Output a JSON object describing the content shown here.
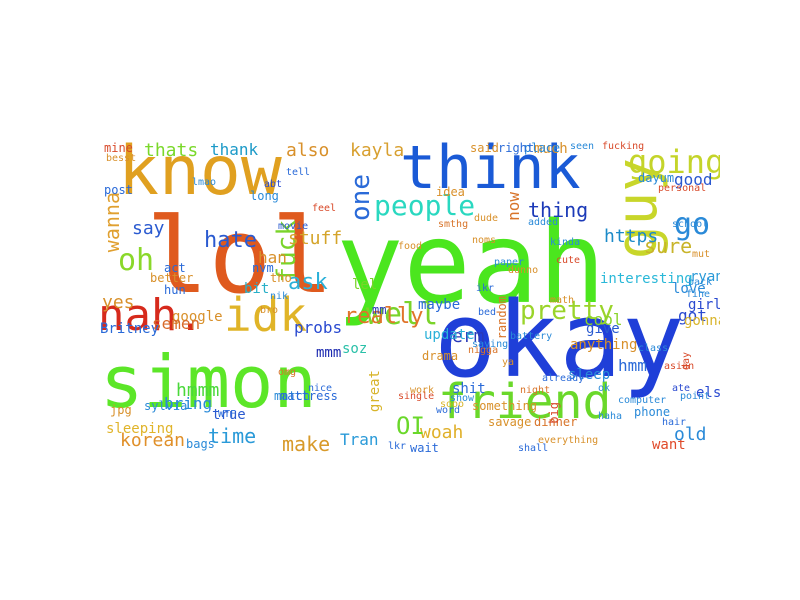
{
  "words": [
    {
      "t": "yeah",
      "c": "#4be61e"
    },
    {
      "t": "okay",
      "c": "#1f3fd8"
    },
    {
      "t": "simon",
      "c": "#5ce628"
    },
    {
      "t": "lol",
      "c": "#df5a1e"
    },
    {
      "t": "know",
      "c": "#e0a020"
    },
    {
      "t": "think",
      "c": "#1a5ad6"
    },
    {
      "t": "guy",
      "c": "#c8d62a"
    },
    {
      "t": "friend",
      "c": "#6ad82a"
    },
    {
      "t": "nah.",
      "c": "#d62a1c"
    },
    {
      "t": "idk",
      "c": "#e0b428"
    },
    {
      "t": "going",
      "c": "#c4d42a"
    },
    {
      "t": "people",
      "c": "#2ad8c0"
    },
    {
      "t": "well",
      "c": "#7ad42a"
    },
    {
      "t": "oh",
      "c": "#8ad82a"
    },
    {
      "t": "fuck",
      "c": "#7ad42a"
    },
    {
      "t": "go",
      "c": "#2a8ad8"
    },
    {
      "t": "one",
      "c": "#2a6ad8"
    },
    {
      "t": "hate",
      "c": "#2a5ad0"
    },
    {
      "t": "ask",
      "c": "#2ab0d8"
    },
    {
      "t": "pretty",
      "c": "#9ad42a"
    },
    {
      "t": "stuff",
      "c": "#d4a42a"
    },
    {
      "t": "thats",
      "c": "#7ad82a"
    },
    {
      "t": "also",
      "c": "#d8902a"
    },
    {
      "t": "kayla",
      "c": "#d8a030"
    },
    {
      "t": "thank",
      "c": "#1c9ac8"
    },
    {
      "t": "good",
      "c": "#2a58d0"
    },
    {
      "t": "thing",
      "c": "#1c3ab8"
    },
    {
      "t": "sure",
      "c": "#c8b42a"
    },
    {
      "t": "wanna",
      "c": "#e0a030"
    },
    {
      "t": "say",
      "c": "#2a5ad0"
    },
    {
      "t": "yes",
      "c": "#d8902a"
    },
    {
      "t": "time",
      "c": "#2a9ad8"
    },
    {
      "t": "make",
      "c": "#d89a2a"
    },
    {
      "t": "korean",
      "c": "#e0902a"
    },
    {
      "t": "really",
      "c": "#e0742a"
    },
    {
      "t": "erm",
      "c": "#2a3ab8"
    },
    {
      "t": "lel",
      "c": "#7ad42a"
    },
    {
      "t": "woah",
      "c": "#e0b02a"
    },
    {
      "t": "OI",
      "c": "#6ad82a"
    },
    {
      "t": "Tran",
      "c": "#2a9ad8"
    },
    {
      "t": "want",
      "c": "#e04a2a"
    },
    {
      "t": "old",
      "c": "#2a8ad8"
    },
    {
      "t": "got",
      "c": "#2a4ad0"
    },
    {
      "t": "https",
      "c": "#1c8ac8"
    },
    {
      "t": "now",
      "c": "#d8742a"
    },
    {
      "t": "cool",
      "c": "#8ad42a"
    },
    {
      "t": "han",
      "c": "#d8902a"
    },
    {
      "t": "bit",
      "c": "#2ab0c8"
    },
    {
      "t": "probs",
      "c": "#2a4ad0"
    },
    {
      "t": "soz",
      "c": "#2ac0a8"
    },
    {
      "t": "update",
      "c": "#2ab0d8"
    },
    {
      "t": "hmmm",
      "c": "#4ad83a"
    },
    {
      "t": "bring",
      "c": "#2a8ad8"
    },
    {
      "t": "true",
      "c": "#2a5ad0"
    },
    {
      "t": "mmm",
      "c": "#1c2ab0"
    },
    {
      "t": "google",
      "c": "#d8902a"
    },
    {
      "t": "semen",
      "c": "#d86a2a"
    },
    {
      "t": "Britney",
      "c": "#2a6ad8"
    },
    {
      "t": "sleeping",
      "c": "#e0b42a"
    },
    {
      "t": "interesting",
      "c": "#2ab8d8"
    },
    {
      "t": "gonna",
      "c": "#d8b42a"
    },
    {
      "t": "ryan",
      "c": "#2a9ad8"
    },
    {
      "t": "anything",
      "c": "#d8902a"
    },
    {
      "t": "girl",
      "c": "#2a4ad0"
    },
    {
      "t": "give",
      "c": "#2a5ad0"
    },
    {
      "t": "sleep",
      "c": "#2a8ad8"
    },
    {
      "t": "great",
      "c": "#d8b42a"
    },
    {
      "t": "shit",
      "c": "#2a6ad8"
    },
    {
      "t": "else",
      "c": "#2a4ad0"
    },
    {
      "t": "maybe",
      "c": "#2a6ad8"
    },
    {
      "t": "act",
      "c": "#2a6ad8"
    },
    {
      "t": "better",
      "c": "#d8902a"
    },
    {
      "t": "hmm",
      "c": "#2a6ad8"
    },
    {
      "t": "dinner",
      "c": "#d8742a"
    },
    {
      "t": "much",
      "c": "#d8902a"
    },
    {
      "t": "love",
      "c": "#2a8ad8"
    },
    {
      "t": "something",
      "c": "#d8902a"
    },
    {
      "t": "idea",
      "c": "#d8902a"
    },
    {
      "t": "post",
      "c": "#2a6ad8"
    },
    {
      "t": "match",
      "c": "#2a8ad8"
    },
    {
      "t": "mattress",
      "c": "#2a6ad8"
    },
    {
      "t": "single",
      "c": "#d84a2a"
    },
    {
      "t": "phone",
      "c": "#2a8ad8"
    },
    {
      "t": "savage",
      "c": "#d8902a"
    },
    {
      "t": "everything",
      "c": "#d8902a"
    },
    {
      "t": "asian",
      "c": "#d84a2a"
    },
    {
      "t": "point",
      "c": "#2a8ad8"
    },
    {
      "t": "movie",
      "c": "#2a5ad0"
    },
    {
      "t": "said",
      "c": "#d8902a"
    },
    {
      "t": "place",
      "c": "#2a8ad8"
    },
    {
      "t": "right",
      "c": "#2a6ad8"
    },
    {
      "t": "mine",
      "c": "#d84a2a"
    },
    {
      "t": "long",
      "c": "#2a8ad8"
    },
    {
      "t": "math",
      "c": "#d8902a"
    },
    {
      "t": "random",
      "c": "#d8742a"
    },
    {
      "t": "drama",
      "c": "#d8902a"
    },
    {
      "t": "saying",
      "c": "#2a8ad8"
    },
    {
      "t": "dayum",
      "c": "#2a8ad8"
    },
    {
      "t": "nvm",
      "c": "#2a6ad8"
    },
    {
      "t": "fine",
      "c": "#2a8ad8"
    },
    {
      "t": "back",
      "c": "#2a8ad8"
    },
    {
      "t": "wait",
      "c": "#2a6ad8"
    },
    {
      "t": "bags",
      "c": "#2a8ad8"
    },
    {
      "t": "sylvia",
      "c": "#2a8ad8"
    },
    {
      "t": "tho",
      "c": "#d8902a"
    },
    {
      "t": "sooo",
      "c": "#d8b42a"
    },
    {
      "t": "already",
      "c": "#2a6ad8"
    },
    {
      "t": "computer",
      "c": "#2a8ad8"
    },
    {
      "t": "personal",
      "c": "#d84a2a"
    },
    {
      "t": "hun",
      "c": "#2a6ad8"
    },
    {
      "t": "smthg",
      "c": "#d8742a"
    },
    {
      "t": "nik",
      "c": "#2a8ad8"
    },
    {
      "t": "lkr",
      "c": "#2a6ad8"
    },
    {
      "t": "mm",
      "c": "#2a3ab8"
    },
    {
      "t": "jpg",
      "c": "#d8902a"
    },
    {
      "t": "ate",
      "c": "#2a4ad0"
    },
    {
      "t": "mut",
      "c": "#d8902a"
    },
    {
      "t": "day",
      "c": "#d84a2a"
    },
    {
      "t": "big",
      "c": "#d84a2a"
    },
    {
      "t": "nigga",
      "c": "#d8742a"
    },
    {
      "t": "school",
      "c": "#2a8ad8"
    },
    {
      "t": "added",
      "c": "#2a8ad8"
    },
    {
      "t": "work",
      "c": "#d8902a"
    },
    {
      "t": "show",
      "c": "#2a8ad8"
    },
    {
      "t": "word",
      "c": "#2a6ad8"
    },
    {
      "t": "shall",
      "c": "#2a6ad8"
    },
    {
      "t": "battery",
      "c": "#2a8ad8"
    },
    {
      "t": "bed",
      "c": "#2a6ad8"
    },
    {
      "t": "abt",
      "c": "#2a4ad0"
    },
    {
      "t": "fucking",
      "c": "#d84a2a"
    },
    {
      "t": "paper",
      "c": "#2a8ad8"
    },
    {
      "t": "seen",
      "c": "#2a8ad8"
    },
    {
      "t": "dude",
      "c": "#d8902a"
    },
    {
      "t": "tell",
      "c": "#2a6ad8"
    },
    {
      "t": "noms",
      "c": "#d8902a"
    },
    {
      "t": "WTF",
      "c": "#2a6ad8"
    },
    {
      "t": "besst",
      "c": "#d8902a"
    },
    {
      "t": "feel",
      "c": "#d84a2a"
    },
    {
      "t": "kinda",
      "c": "#2a8ad8"
    },
    {
      "t": "dunno",
      "c": "#d8902a"
    },
    {
      "t": "haha",
      "c": "#2a8ad8"
    },
    {
      "t": "omg",
      "c": "#d8742a"
    },
    {
      "t": "ikr",
      "c": "#2a6ad8"
    },
    {
      "t": "ya",
      "c": "#d8902a"
    },
    {
      "t": "ok",
      "c": "#2a8ad8"
    },
    {
      "t": "cute",
      "c": "#d84a2a"
    },
    {
      "t": "lmao",
      "c": "#2a8ad8"
    },
    {
      "t": "bro",
      "c": "#d8902a"
    },
    {
      "t": "nice",
      "c": "#2a6ad8"
    },
    {
      "t": "food",
      "c": "#d8902a"
    },
    {
      "t": "class",
      "c": "#2a8ad8"
    },
    {
      "t": "night",
      "c": "#d8742a"
    },
    {
      "t": "hair",
      "c": "#2a6ad8"
    }
  ]
}
